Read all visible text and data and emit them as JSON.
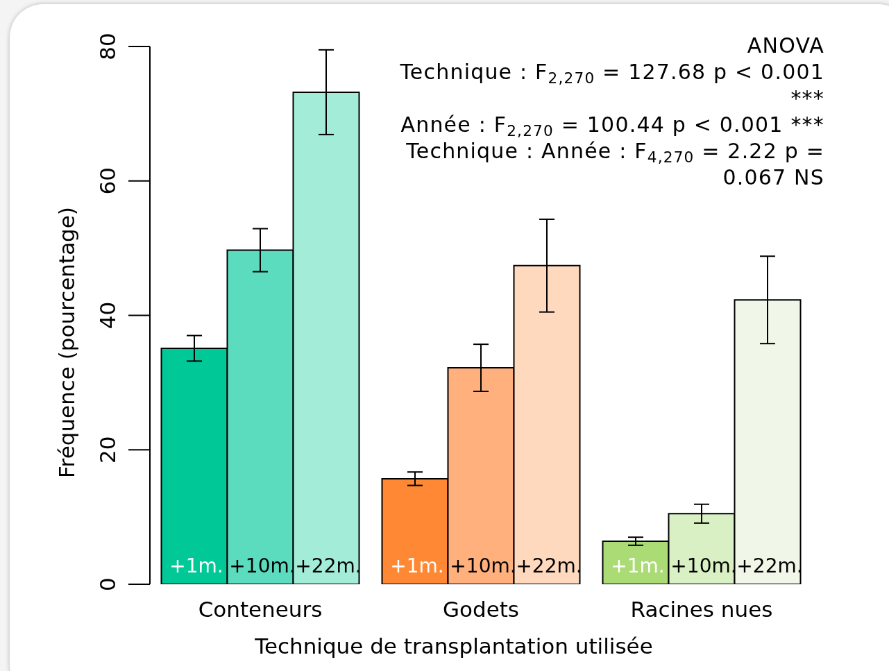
{
  "chart_data": {
    "type": "bar",
    "xlabel": "Technique de transplantation utilisée",
    "ylabel": "Fréquence (pourcentage)",
    "categories": [
      "Conteneurs",
      "Godets",
      "Racines nues"
    ],
    "series": [
      {
        "name": "+1m.",
        "colors": [
          "#00c896",
          "#fe8833",
          "#aadb75"
        ],
        "values": [
          35.1,
          15.7,
          6.4
        ],
        "errors": [
          1.9,
          1.0,
          0.6
        ]
      },
      {
        "name": "+10m.",
        "colors": [
          "#5cdcbe",
          "#ffb07c",
          "#d9efc4"
        ],
        "values": [
          49.7,
          32.2,
          10.5
        ],
        "errors": [
          3.2,
          3.5,
          1.4
        ]
      },
      {
        "name": "+22m.",
        "colors": [
          "#a3ecd8",
          "#ffd9bd",
          "#f0f7e9"
        ],
        "values": [
          73.2,
          47.4,
          42.3
        ],
        "errors": [
          6.3,
          6.9,
          6.5
        ]
      }
    ],
    "ylim": [
      0,
      80
    ],
    "yticks": [
      0,
      20,
      40,
      60,
      80
    ],
    "annotations": [
      "ANOVA",
      "Technique : F$_{2,270}$ = 127.68 p < 0.001 ***",
      "Année : F$_{2,270}$ = 100.44 p < 0.001 ***",
      "Technique : Année : F$_{4,270}$ = 2.22 p = 0.067 NS"
    ]
  }
}
